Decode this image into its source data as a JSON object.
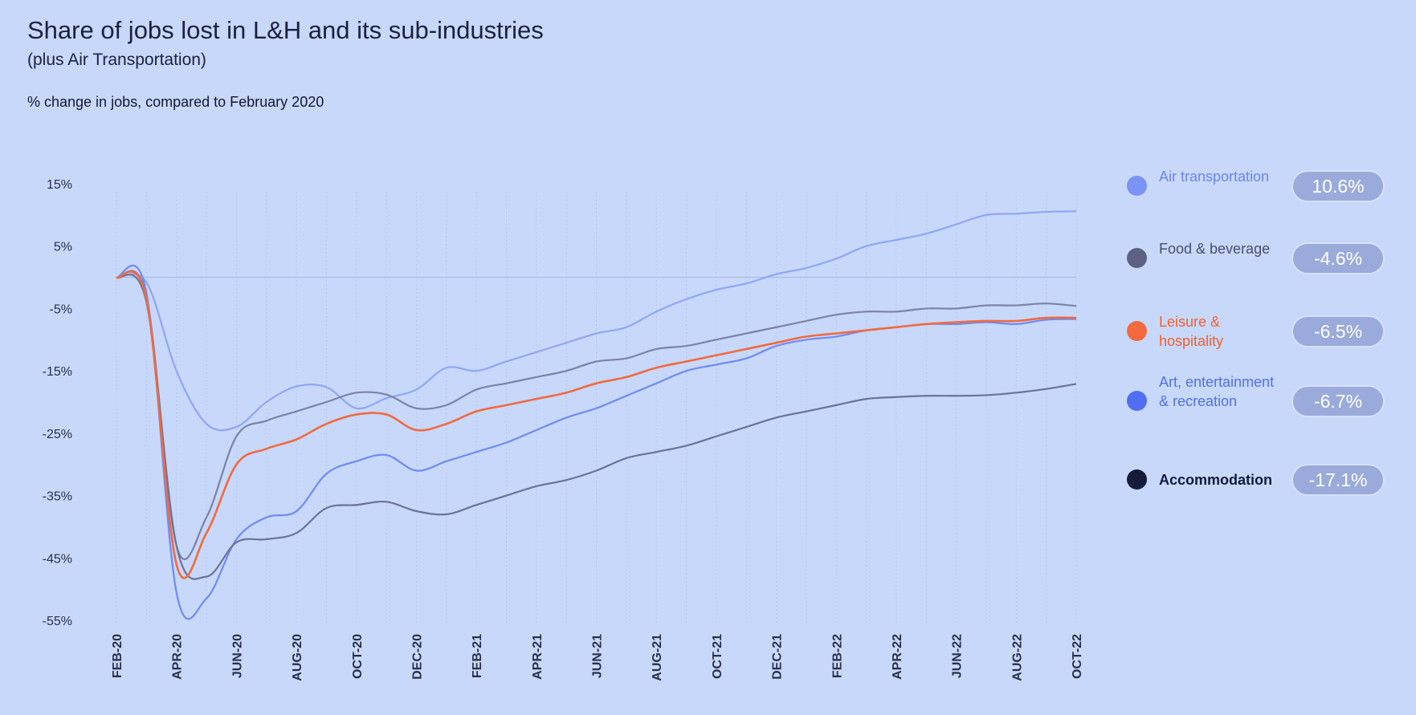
{
  "chart_data": {
    "type": "line",
    "title": "Share of jobs lost in L&H and its sub-industries",
    "subtitle": "(plus Air Transportation)",
    "ylabel": "% change in jobs, compared to February 2020",
    "ylim": [
      -55,
      15
    ],
    "yticks": [
      15,
      5,
      -5,
      -15,
      -25,
      -35,
      -45,
      -55
    ],
    "ytick_labels": [
      "15%",
      "5%",
      "-5%",
      "-15%",
      "-25%",
      "-35%",
      "-45%",
      "-55%"
    ],
    "x": [
      "FEB-20",
      "MAR-20",
      "APR-20",
      "MAY-20",
      "JUN-20",
      "JUL-20",
      "AUG-20",
      "SEP-20",
      "OCT-20",
      "NOV-20",
      "DEC-20",
      "JAN-21",
      "FEB-21",
      "MAR-21",
      "APR-21",
      "MAY-21",
      "JUN-21",
      "JUL-21",
      "AUG-21",
      "SEP-21",
      "OCT-21",
      "NOV-21",
      "DEC-21",
      "JAN-22",
      "FEB-22",
      "MAR-22",
      "APR-22",
      "MAY-22",
      "JUN-22",
      "JUL-22",
      "AUG-22",
      "SEP-22",
      "OCT-22"
    ],
    "xtick_labels": [
      "FEB-20",
      "APR-20",
      "JUN-20",
      "AUG-20",
      "OCT-20",
      "DEC-20",
      "FEB-21",
      "APR-21",
      "JUN-21",
      "AUG-21",
      "OCT-21",
      "DEC-21",
      "FEB-22",
      "APR-22",
      "JUN-22",
      "AUG-22",
      "OCT-22"
    ],
    "grid": true,
    "legend_position": "right",
    "series": [
      {
        "name": "Air transportation",
        "value_label": "10.6%",
        "color": "#8fa6f7",
        "text_color": "#6b86f0",
        "dot_color": "#7b93f4",
        "values": [
          0,
          -0.8,
          -15,
          -23.5,
          -24,
          -20,
          -17.5,
          -17.6,
          -21,
          -19.4,
          -18,
          -14.5,
          -15,
          -13.5,
          -12,
          -10.5,
          -9,
          -8,
          -5.5,
          -3.5,
          -2,
          -1,
          0.5,
          1.5,
          3,
          5,
          6,
          7,
          8.5,
          10,
          10.2,
          10.5,
          10.6
        ]
      },
      {
        "name": "Food & beverage",
        "value_label": "-4.6%",
        "color": "#7b83a6",
        "text_color": "#4a4e6a",
        "dot_color": "#5c6184",
        "values": [
          0,
          -3,
          -43,
          -38.5,
          -25.5,
          -23,
          -21.5,
          -20,
          -18.5,
          -18.8,
          -21,
          -20.5,
          -18,
          -17,
          -16,
          -15,
          -13.5,
          -13,
          -11.5,
          -11,
          -10,
          -9,
          -8,
          -7,
          -6,
          -5.5,
          -5.5,
          -5,
          -5,
          -4.5,
          -4.5,
          -4.2,
          -4.6
        ]
      },
      {
        "name": "Leisure & hospitality",
        "value_label": "-6.5%",
        "color": "#f26a3d",
        "text_color": "#f0622f",
        "dot_color": "#f26a3d",
        "values": [
          0,
          -3.5,
          -46,
          -41,
          -30,
          -27.5,
          -26,
          -23.5,
          -22,
          -22,
          -24.5,
          -23.5,
          -21.5,
          -20.5,
          -19.5,
          -18.5,
          -17,
          -16,
          -14.5,
          -13.5,
          -12.5,
          -11.5,
          -10.5,
          -9.5,
          -9,
          -8.5,
          -8,
          -7.5,
          -7.2,
          -7,
          -7,
          -6.5,
          -6.5
        ]
      },
      {
        "name": "Art, entertainment & recreation",
        "value_label": "-6.7%",
        "color": "#6f8af5",
        "text_color": "#5370ee",
        "dot_color": "#4f6ef0",
        "values": [
          0,
          -2.5,
          -50.5,
          -51.5,
          -42,
          -38.5,
          -37.5,
          -31.5,
          -29.5,
          -28.5,
          -31,
          -29.5,
          -28,
          -26.5,
          -24.5,
          -22.5,
          -21,
          -19,
          -17,
          -15,
          -14,
          -13,
          -11,
          -10,
          -9.5,
          -8.5,
          -8,
          -7.5,
          -7.5,
          -7.2,
          -7.5,
          -6.8,
          -6.7
        ]
      },
      {
        "name": "Accommodation",
        "value_label": "-17.1%",
        "color": "#6c7394",
        "text_color": "#151a38",
        "dot_color": "#141a3a",
        "values": [
          0,
          -4,
          -43,
          -48,
          -42.5,
          -42,
          -41,
          -37,
          -36.5,
          -36,
          -37.5,
          -38,
          -36.5,
          -35,
          -33.5,
          -32.5,
          -31,
          -29,
          -28,
          -27,
          -25.5,
          -24,
          -22.5,
          -21.5,
          -20.5,
          -19.5,
          -19.2,
          -19,
          -19,
          -18.9,
          -18.5,
          -17.9,
          -17.1
        ]
      }
    ]
  }
}
